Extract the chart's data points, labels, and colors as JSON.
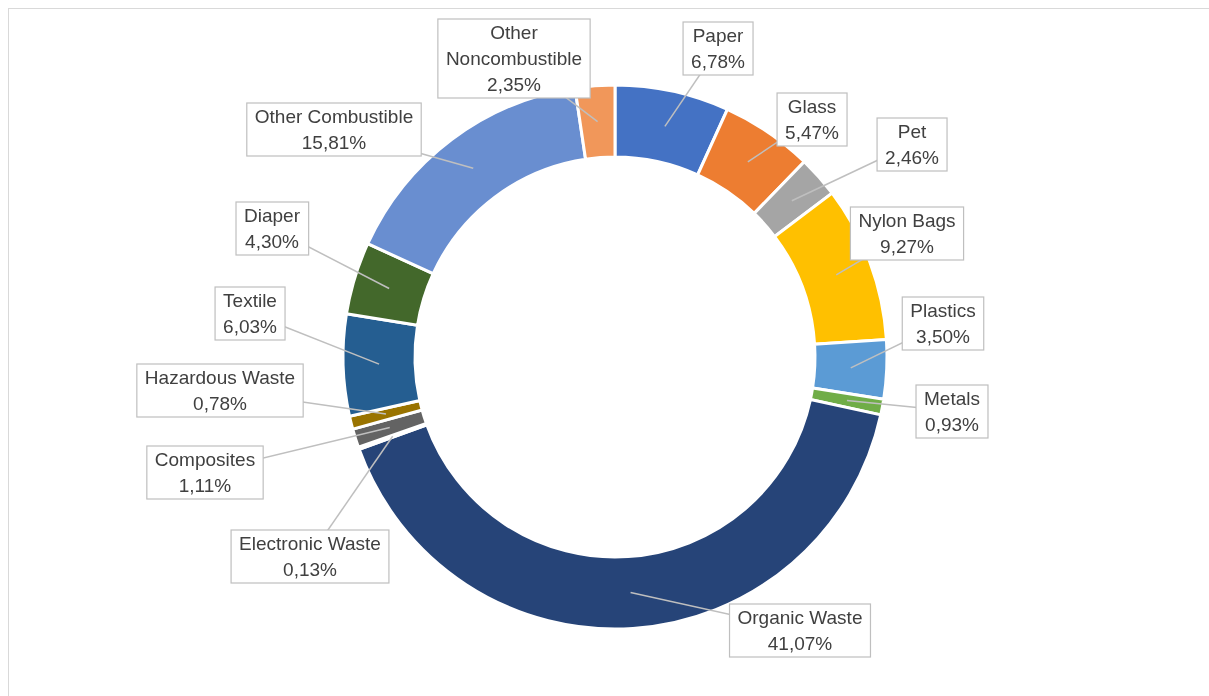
{
  "chart_data": {
    "type": "donut",
    "categories": [
      "Paper",
      "Glass",
      "Pet",
      "Nylon Bags",
      "Plastics",
      "Metals",
      "Organic Waste",
      "Electronic Waste",
      "Composites",
      "Hazardous Waste",
      "Textile",
      "Diaper",
      "Other Combustible",
      "Other Noncombustible"
    ],
    "values": [
      6.78,
      5.47,
      2.46,
      9.27,
      3.5,
      0.93,
      41.07,
      0.13,
      1.11,
      0.78,
      6.03,
      4.3,
      15.81,
      2.35
    ],
    "value_labels": [
      "6,78%",
      "5,47%",
      "2,46%",
      "9,27%",
      "3,50%",
      "0,93%",
      "41,07%",
      "0,13%",
      "1,11%",
      "0,78%",
      "6,03%",
      "4,30%",
      "15,81%",
      "2,35%"
    ],
    "colors": [
      "#4472c4",
      "#ed7d31",
      "#a5a5a5",
      "#ffc000",
      "#5b9bd5",
      "#70ad47",
      "#264478",
      "#9e480e",
      "#636363",
      "#997300",
      "#255e91",
      "#43682b",
      "#698ed0",
      "#f1975a"
    ]
  }
}
